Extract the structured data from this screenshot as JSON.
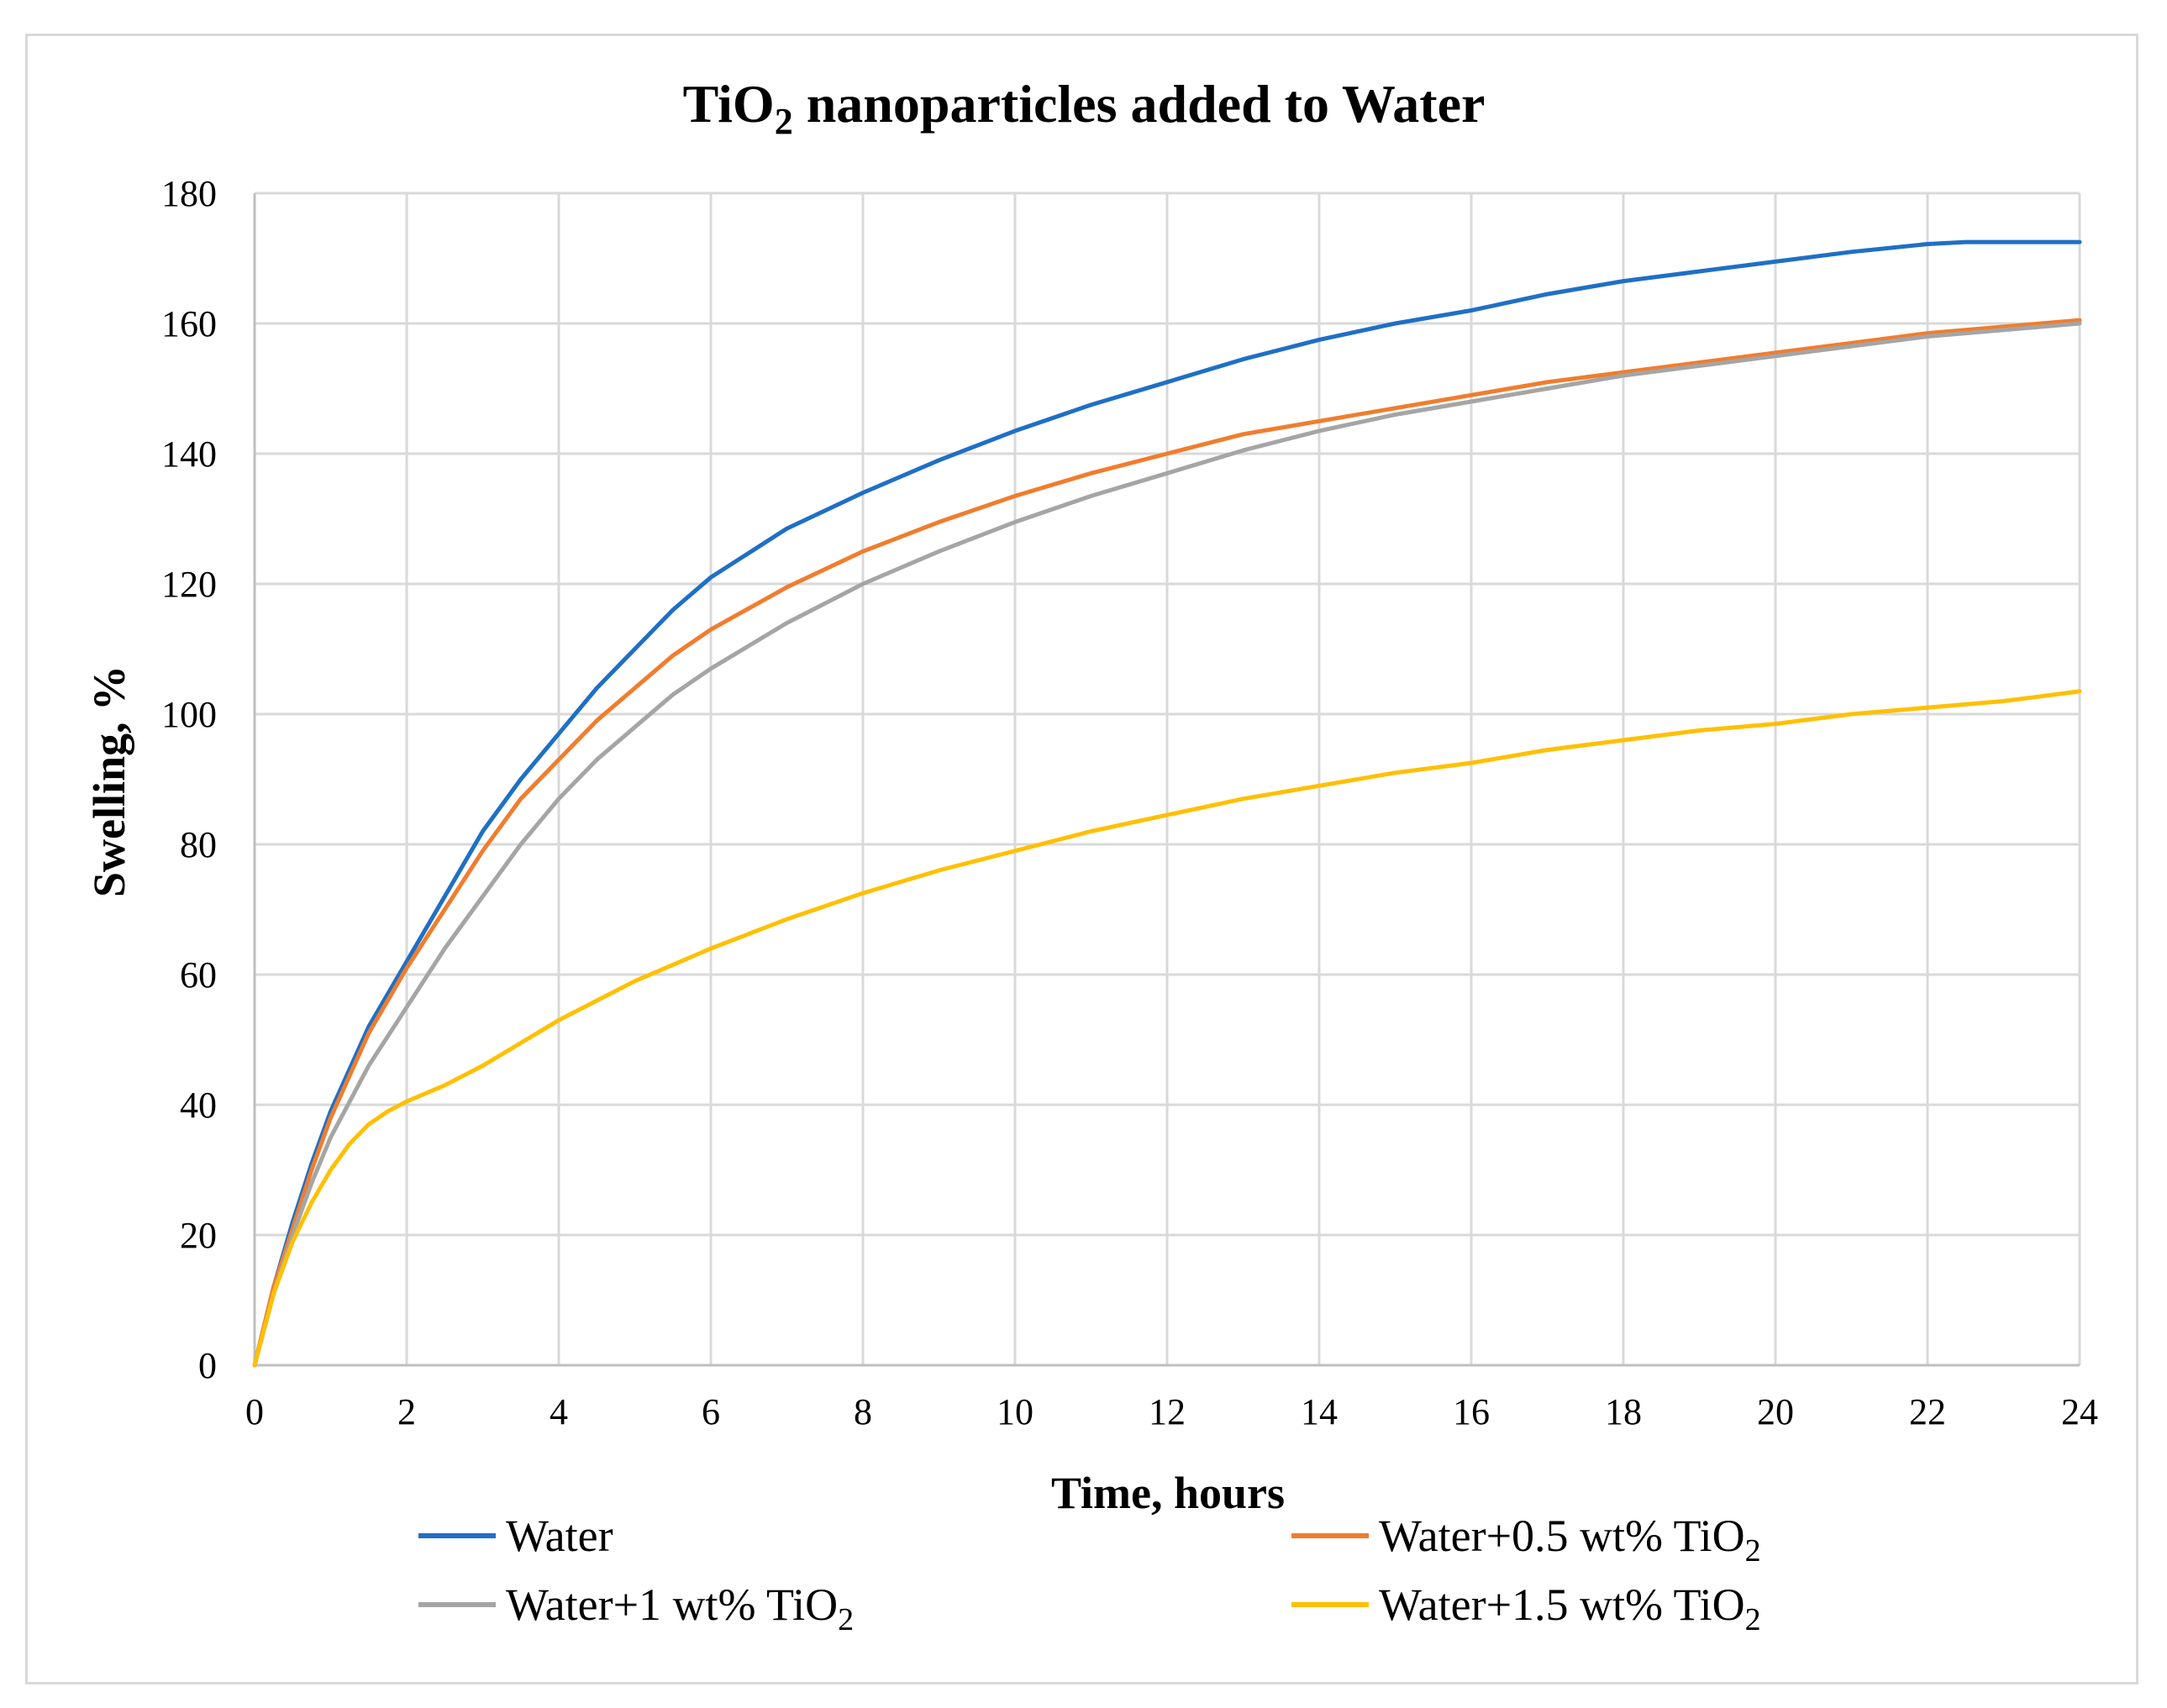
{
  "chart_data": {
    "type": "line",
    "title": {
      "main": "TiO",
      "subscript": "2",
      "rest": " nanoparticles added to Water"
    },
    "xlabel": "Time, hours",
    "ylabel": "Swelling,  %",
    "xlim": [
      0,
      24
    ],
    "ylim": [
      0,
      180
    ],
    "xticks": [
      0,
      2,
      4,
      6,
      8,
      10,
      12,
      14,
      16,
      18,
      20,
      22,
      24
    ],
    "yticks": [
      0,
      20,
      40,
      60,
      80,
      100,
      120,
      140,
      160,
      180
    ],
    "grid": true,
    "legend_position": "bottom",
    "series": [
      {
        "name": "Water",
        "name_main": "Water",
        "name_sub": "",
        "color": "#1f6fc6",
        "x": [
          0,
          0.25,
          0.5,
          0.75,
          1,
          1.5,
          2,
          2.5,
          3,
          3.5,
          4,
          4.5,
          5,
          5.5,
          6,
          7,
          8,
          9,
          10,
          11,
          12,
          13,
          14,
          15,
          16,
          17,
          18,
          19,
          20,
          21,
          22,
          22.5,
          23,
          24
        ],
        "y": [
          0,
          12,
          22,
          31,
          39,
          52,
          62,
          72,
          82,
          90,
          97,
          104,
          110,
          116,
          121,
          128.5,
          134,
          139,
          143.5,
          147.5,
          151,
          154.5,
          157.5,
          160,
          162,
          164.5,
          166.5,
          168,
          169.5,
          171,
          172.2,
          172.5,
          172.5,
          172.5
        ]
      },
      {
        "name": "Water+0.5 wt% TiO2",
        "name_main": "Water+0.5 wt% TiO",
        "name_sub": "2",
        "color": "#f07d2e",
        "x": [
          0,
          0.25,
          0.5,
          0.75,
          1,
          1.5,
          2,
          2.5,
          3,
          3.5,
          4,
          4.5,
          5,
          5.5,
          6,
          7,
          8,
          9,
          10,
          11,
          12,
          13,
          14,
          15,
          16,
          17,
          18,
          19,
          20,
          21,
          22,
          23,
          24
        ],
        "y": [
          0,
          12,
          21,
          30,
          38,
          51,
          61,
          70,
          79,
          87,
          93,
          99,
          104,
          109,
          113,
          119.5,
          125,
          129.5,
          133.5,
          137,
          140,
          143,
          145,
          147,
          149,
          151,
          152.5,
          154,
          155.5,
          157,
          158.5,
          159.5,
          160.5
        ]
      },
      {
        "name": "Water+1 wt% TiO2",
        "name_main": "Water+1 wt% TiO",
        "name_sub": "2",
        "color": "#a5a5a5",
        "x": [
          0,
          0.25,
          0.5,
          0.75,
          1,
          1.5,
          2,
          2.5,
          3,
          3.5,
          4,
          4.5,
          5,
          5.5,
          6,
          7,
          8,
          9,
          10,
          11,
          12,
          13,
          14,
          15,
          16,
          17,
          18,
          19,
          20,
          21,
          22,
          23,
          24
        ],
        "y": [
          0,
          11,
          20,
          28,
          35,
          46,
          55,
          64,
          72,
          80,
          87,
          93,
          98,
          103,
          107,
          114,
          120,
          125,
          129.5,
          133.5,
          137,
          140.5,
          143.5,
          146,
          148,
          150,
          152,
          153.5,
          155,
          156.5,
          158,
          159,
          160
        ]
      },
      {
        "name": "Water+1.5 wt% TiO2",
        "name_main": "Water+1.5 wt% TiO",
        "name_sub": "2",
        "color": "#ffc000",
        "x": [
          0,
          0.25,
          0.5,
          0.75,
          1,
          1.25,
          1.5,
          1.75,
          2,
          2.5,
          3,
          3.5,
          4,
          4.5,
          5,
          5.5,
          6,
          7,
          8,
          9,
          10,
          11,
          12,
          13,
          14,
          15,
          16,
          17,
          18,
          19,
          20,
          21,
          22,
          23,
          24
        ],
        "y": [
          0,
          11,
          19,
          25,
          30,
          34,
          37,
          39,
          40.5,
          43,
          46,
          49.5,
          53,
          56,
          59,
          61.5,
          64,
          68.5,
          72.5,
          76,
          79,
          82,
          84.5,
          87,
          89,
          91,
          92.5,
          94.5,
          96,
          97.5,
          98.5,
          100,
          101,
          102,
          103.5
        ]
      }
    ]
  }
}
